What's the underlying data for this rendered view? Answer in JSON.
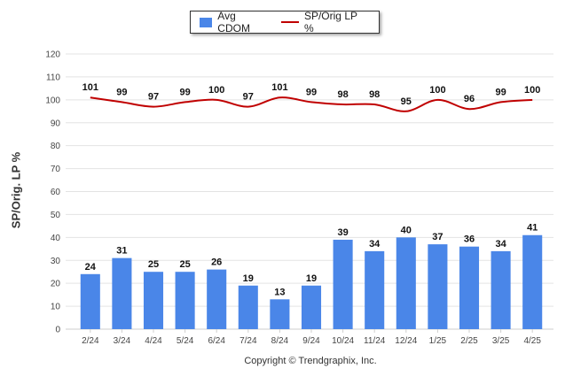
{
  "chart_data": {
    "type": "bar",
    "categories": [
      "2/24",
      "3/24",
      "4/24",
      "5/24",
      "6/24",
      "7/24",
      "8/24",
      "9/24",
      "10/24",
      "11/24",
      "12/24",
      "1/25",
      "2/25",
      "3/25",
      "4/25"
    ],
    "series": [
      {
        "name": "Avg CDOM",
        "type": "bar",
        "color": "#4a86e8",
        "values": [
          24,
          31,
          25,
          25,
          26,
          19,
          13,
          19,
          39,
          34,
          40,
          37,
          36,
          34,
          41
        ]
      },
      {
        "name": "SP/Orig LP %",
        "type": "line",
        "color": "#c00000",
        "values": [
          101,
          99,
          97,
          99,
          100,
          97,
          101,
          99,
          98,
          98,
          95,
          100,
          96,
          99,
          100
        ]
      }
    ],
    "ylabel": "SP/Orig. LP %",
    "ylim": [
      0,
      120
    ],
    "yticks": [
      0,
      10,
      20,
      30,
      40,
      50,
      60,
      70,
      80,
      90,
      100,
      110,
      120
    ],
    "grid": true,
    "legend": "top-center"
  },
  "footer": {
    "copyright": "Copyright © Trendgraphix, Inc."
  }
}
